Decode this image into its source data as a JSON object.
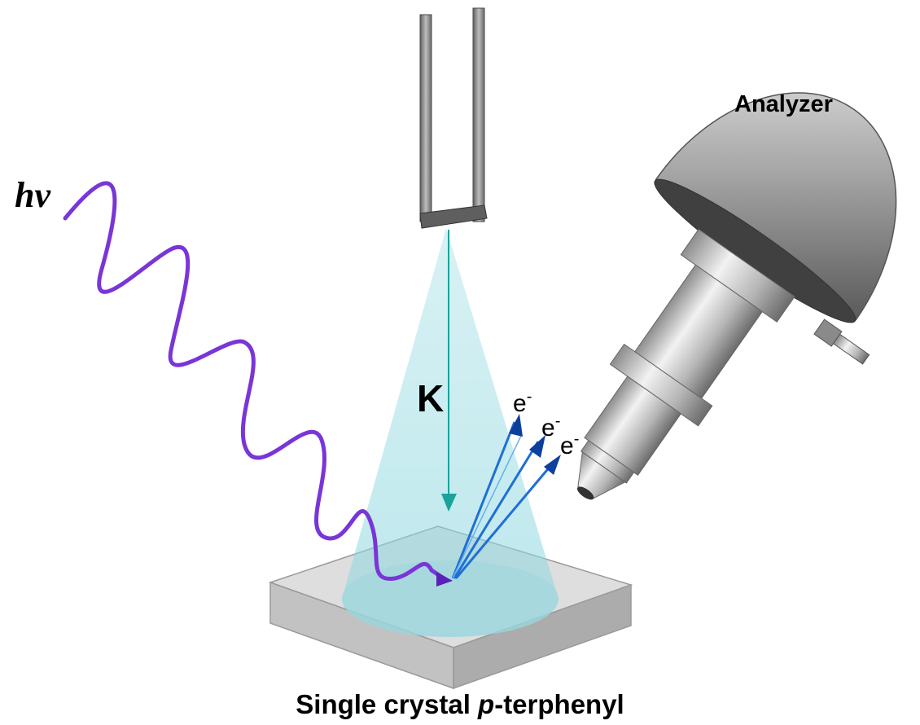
{
  "labels": {
    "photon": "hν",
    "analyzer": "Analyzer",
    "momentum": "K",
    "electron_base": "e",
    "electron_charge": "-"
  },
  "caption": {
    "prefix": "Single crystal ",
    "italic": "p",
    "suffix": "-terphenyl"
  },
  "colors": {
    "photon_wave": "#7a35d8",
    "cone_fill": "#8fd8e0",
    "k_arrow": "#1aa39a",
    "electron_arrows": "#1f6fd6",
    "electron_arrowheads": "#0d3f9c",
    "crystal_top": "#dcdcdc",
    "crystal_side": "#b9b9b9",
    "analyzer_metal": "#9b9b9b",
    "holder": "#6e6e6e"
  },
  "icons": {
    "sample_holder": "u-fork-holder-icon",
    "detector": "hemispherical-analyzer-icon"
  }
}
